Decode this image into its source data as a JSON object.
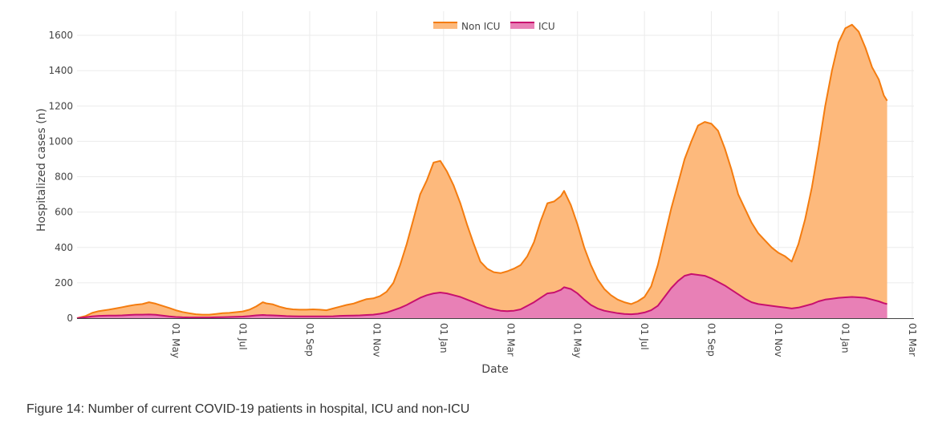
{
  "chart_data": {
    "type": "area",
    "title": "",
    "xlabel": "Date",
    "ylabel": "Hospitalized cases (n)",
    "ylim": [
      0,
      1700
    ],
    "y_ticks": [
      0,
      200,
      400,
      600,
      800,
      1000,
      1200,
      1400,
      1600
    ],
    "x_domain": [
      -1.95,
      23.05
    ],
    "x_ticks": [
      {
        "x": 1,
        "label": "01 May"
      },
      {
        "x": 3,
        "label": "01 Jul"
      },
      {
        "x": 5,
        "label": "01 Sep"
      },
      {
        "x": 7,
        "label": "01 Nov"
      },
      {
        "x": 9,
        "label": "01 Jan"
      },
      {
        "x": 11,
        "label": "01 Mar"
      },
      {
        "x": 13,
        "label": "01 May"
      },
      {
        "x": 15,
        "label": "01 Jul"
      },
      {
        "x": 17,
        "label": "01 Sep"
      },
      {
        "x": 19,
        "label": "01 Nov"
      },
      {
        "x": 21,
        "label": "01 Jan"
      },
      {
        "x": 23,
        "label": "01 Mar"
      }
    ],
    "x_units": "months since 01 Apr (01 May = 1)",
    "grid": true,
    "legend_position": "top-center",
    "stacked": true,
    "series": [
      {
        "name": "Non ICU",
        "color": "#f47c0f",
        "fill": "#fdb97c",
        "points": [
          [
            -1.95,
            0
          ],
          [
            -1.7,
            12
          ],
          [
            -1.5,
            30
          ],
          [
            -1.3,
            40
          ],
          [
            -1.0,
            48
          ],
          [
            -0.8,
            55
          ],
          [
            -0.6,
            62
          ],
          [
            -0.4,
            70
          ],
          [
            -0.2,
            76
          ],
          [
            0.0,
            80
          ],
          [
            0.2,
            90
          ],
          [
            0.4,
            82
          ],
          [
            0.6,
            70
          ],
          [
            0.8,
            58
          ],
          [
            1.0,
            45
          ],
          [
            1.2,
            35
          ],
          [
            1.4,
            28
          ],
          [
            1.6,
            22
          ],
          [
            1.8,
            20
          ],
          [
            2.0,
            20
          ],
          [
            2.2,
            24
          ],
          [
            2.4,
            28
          ],
          [
            2.6,
            30
          ],
          [
            2.8,
            34
          ],
          [
            3.0,
            38
          ],
          [
            3.2,
            48
          ],
          [
            3.4,
            66
          ],
          [
            3.6,
            90
          ],
          [
            3.7,
            84
          ],
          [
            3.9,
            78
          ],
          [
            4.1,
            65
          ],
          [
            4.3,
            55
          ],
          [
            4.5,
            50
          ],
          [
            4.7,
            48
          ],
          [
            4.9,
            48
          ],
          [
            5.1,
            50
          ],
          [
            5.3,
            48
          ],
          [
            5.5,
            45
          ],
          [
            5.7,
            55
          ],
          [
            5.9,
            65
          ],
          [
            6.1,
            75
          ],
          [
            6.3,
            82
          ],
          [
            6.5,
            95
          ],
          [
            6.7,
            108
          ],
          [
            6.9,
            112
          ],
          [
            7.1,
            125
          ],
          [
            7.3,
            150
          ],
          [
            7.5,
            200
          ],
          [
            7.7,
            300
          ],
          [
            7.9,
            420
          ],
          [
            8.1,
            560
          ],
          [
            8.3,
            700
          ],
          [
            8.5,
            780
          ],
          [
            8.7,
            880
          ],
          [
            8.9,
            890
          ],
          [
            9.1,
            830
          ],
          [
            9.3,
            750
          ],
          [
            9.5,
            650
          ],
          [
            9.7,
            530
          ],
          [
            9.9,
            420
          ],
          [
            10.1,
            320
          ],
          [
            10.3,
            280
          ],
          [
            10.5,
            260
          ],
          [
            10.7,
            255
          ],
          [
            10.9,
            265
          ],
          [
            11.1,
            280
          ],
          [
            11.3,
            300
          ],
          [
            11.5,
            350
          ],
          [
            11.7,
            430
          ],
          [
            11.9,
            550
          ],
          [
            12.1,
            650
          ],
          [
            12.3,
            660
          ],
          [
            12.5,
            690
          ],
          [
            12.6,
            720
          ],
          [
            12.8,
            640
          ],
          [
            13.0,
            530
          ],
          [
            13.2,
            400
          ],
          [
            13.4,
            300
          ],
          [
            13.6,
            220
          ],
          [
            13.8,
            165
          ],
          [
            14.0,
            130
          ],
          [
            14.2,
            105
          ],
          [
            14.4,
            90
          ],
          [
            14.6,
            80
          ],
          [
            14.8,
            95
          ],
          [
            15.0,
            120
          ],
          [
            15.2,
            180
          ],
          [
            15.4,
            300
          ],
          [
            15.6,
            460
          ],
          [
            15.8,
            620
          ],
          [
            16.0,
            760
          ],
          [
            16.2,
            900
          ],
          [
            16.4,
            1000
          ],
          [
            16.6,
            1090
          ],
          [
            16.8,
            1110
          ],
          [
            17.0,
            1100
          ],
          [
            17.2,
            1060
          ],
          [
            17.4,
            960
          ],
          [
            17.6,
            840
          ],
          [
            17.8,
            700
          ],
          [
            18.0,
            620
          ],
          [
            18.2,
            540
          ],
          [
            18.4,
            480
          ],
          [
            18.6,
            440
          ],
          [
            18.8,
            400
          ],
          [
            19.0,
            370
          ],
          [
            19.2,
            350
          ],
          [
            19.4,
            320
          ],
          [
            19.6,
            420
          ],
          [
            19.8,
            560
          ],
          [
            20.0,
            740
          ],
          [
            20.2,
            960
          ],
          [
            20.4,
            1200
          ],
          [
            20.6,
            1400
          ],
          [
            20.8,
            1560
          ],
          [
            21.0,
            1640
          ],
          [
            21.2,
            1660
          ],
          [
            21.4,
            1620
          ],
          [
            21.6,
            1530
          ],
          [
            21.8,
            1420
          ],
          [
            22.0,
            1350
          ],
          [
            22.15,
            1260
          ],
          [
            22.25,
            1230
          ]
        ]
      },
      {
        "name": "ICU",
        "color": "#c8106e",
        "fill": "#e880b6",
        "points": [
          [
            -1.95,
            0
          ],
          [
            -1.7,
            5
          ],
          [
            -1.5,
            10
          ],
          [
            -1.3,
            13
          ],
          [
            -1.0,
            15
          ],
          [
            -0.8,
            15
          ],
          [
            -0.6,
            16
          ],
          [
            -0.4,
            18
          ],
          [
            -0.2,
            20
          ],
          [
            0.0,
            20
          ],
          [
            0.2,
            21
          ],
          [
            0.4,
            19
          ],
          [
            0.6,
            15
          ],
          [
            0.8,
            10
          ],
          [
            1.0,
            7
          ],
          [
            1.2,
            5
          ],
          [
            1.4,
            4
          ],
          [
            1.6,
            4
          ],
          [
            1.8,
            4
          ],
          [
            2.0,
            4
          ],
          [
            2.2,
            5
          ],
          [
            2.4,
            6
          ],
          [
            2.6,
            7
          ],
          [
            2.8,
            8
          ],
          [
            3.0,
            9
          ],
          [
            3.2,
            12
          ],
          [
            3.4,
            16
          ],
          [
            3.6,
            18
          ],
          [
            3.7,
            17
          ],
          [
            3.9,
            16
          ],
          [
            4.1,
            14
          ],
          [
            4.3,
            12
          ],
          [
            4.5,
            11
          ],
          [
            4.7,
            10
          ],
          [
            4.9,
            10
          ],
          [
            5.1,
            10
          ],
          [
            5.3,
            10
          ],
          [
            5.5,
            10
          ],
          [
            5.7,
            11
          ],
          [
            5.9,
            13
          ],
          [
            6.1,
            14
          ],
          [
            6.3,
            15
          ],
          [
            6.5,
            16
          ],
          [
            6.7,
            18
          ],
          [
            6.9,
            20
          ],
          [
            7.1,
            25
          ],
          [
            7.3,
            32
          ],
          [
            7.5,
            45
          ],
          [
            7.7,
            58
          ],
          [
            7.9,
            75
          ],
          [
            8.1,
            95
          ],
          [
            8.3,
            115
          ],
          [
            8.5,
            130
          ],
          [
            8.7,
            140
          ],
          [
            8.9,
            145
          ],
          [
            9.1,
            140
          ],
          [
            9.3,
            130
          ],
          [
            9.5,
            120
          ],
          [
            9.7,
            105
          ],
          [
            9.9,
            90
          ],
          [
            10.1,
            75
          ],
          [
            10.3,
            60
          ],
          [
            10.5,
            50
          ],
          [
            10.7,
            42
          ],
          [
            10.9,
            40
          ],
          [
            11.1,
            42
          ],
          [
            11.3,
            50
          ],
          [
            11.5,
            70
          ],
          [
            11.7,
            90
          ],
          [
            11.9,
            115
          ],
          [
            12.1,
            140
          ],
          [
            12.3,
            145
          ],
          [
            12.5,
            160
          ],
          [
            12.6,
            175
          ],
          [
            12.8,
            165
          ],
          [
            13.0,
            140
          ],
          [
            13.2,
            105
          ],
          [
            13.4,
            75
          ],
          [
            13.6,
            55
          ],
          [
            13.8,
            42
          ],
          [
            14.0,
            35
          ],
          [
            14.2,
            28
          ],
          [
            14.4,
            24
          ],
          [
            14.6,
            22
          ],
          [
            14.8,
            25
          ],
          [
            15.0,
            32
          ],
          [
            15.2,
            45
          ],
          [
            15.4,
            70
          ],
          [
            15.6,
            120
          ],
          [
            15.8,
            170
          ],
          [
            16.0,
            210
          ],
          [
            16.2,
            240
          ],
          [
            16.4,
            250
          ],
          [
            16.6,
            245
          ],
          [
            16.8,
            240
          ],
          [
            17.0,
            225
          ],
          [
            17.2,
            205
          ],
          [
            17.4,
            185
          ],
          [
            17.6,
            160
          ],
          [
            17.8,
            135
          ],
          [
            18.0,
            110
          ],
          [
            18.2,
            90
          ],
          [
            18.4,
            80
          ],
          [
            18.6,
            75
          ],
          [
            18.8,
            70
          ],
          [
            19.0,
            65
          ],
          [
            19.2,
            60
          ],
          [
            19.4,
            55
          ],
          [
            19.6,
            60
          ],
          [
            19.8,
            70
          ],
          [
            20.0,
            80
          ],
          [
            20.2,
            95
          ],
          [
            20.4,
            105
          ],
          [
            20.6,
            110
          ],
          [
            20.8,
            115
          ],
          [
            21.0,
            118
          ],
          [
            21.2,
            120
          ],
          [
            21.4,
            118
          ],
          [
            21.6,
            115
          ],
          [
            21.8,
            105
          ],
          [
            22.0,
            95
          ],
          [
            22.15,
            85
          ],
          [
            22.25,
            80
          ]
        ]
      }
    ]
  },
  "caption": "Figure 14: Number of current COVID-19 patients in hospital, ICU and non-ICU"
}
